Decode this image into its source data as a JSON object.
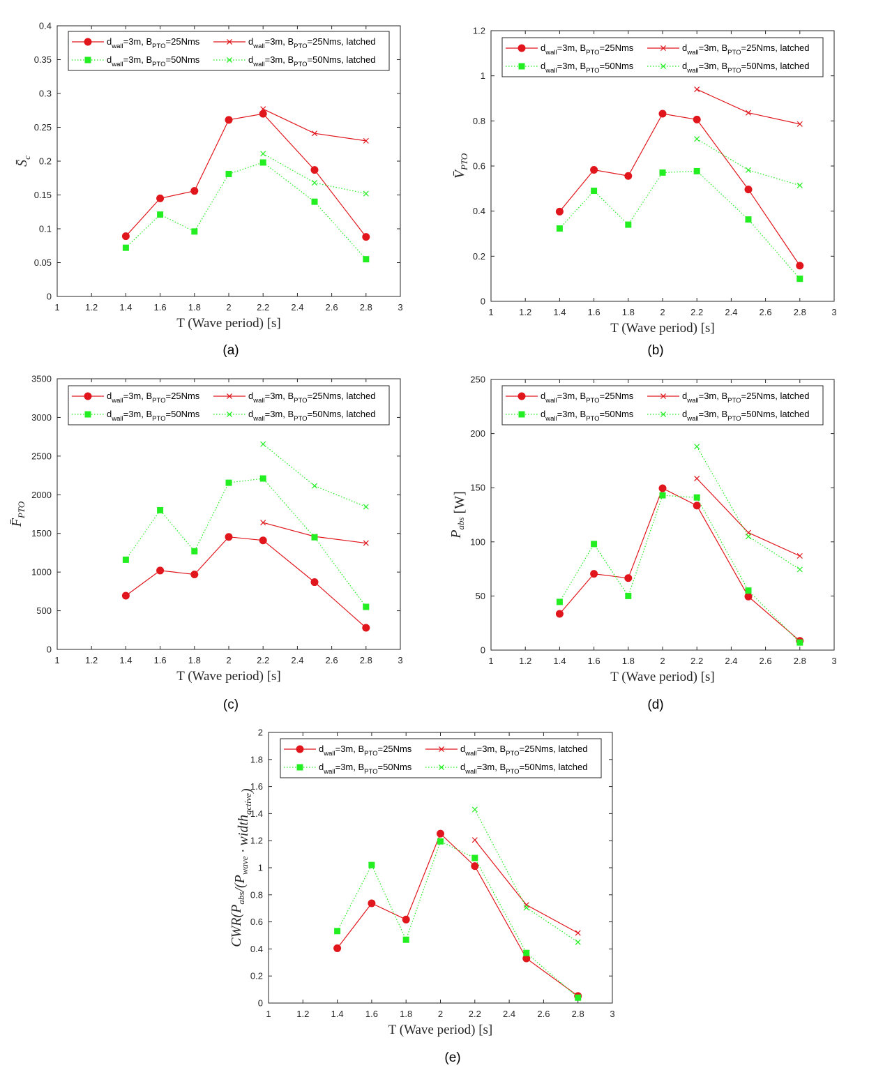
{
  "legend": [
    {
      "label": "d",
      "sub1": "wall",
      "mid": "=3m, B",
      "sub2": "PTO",
      "tail": "=25Nms",
      "color": "#e0161c",
      "marker": "circle",
      "dash": false
    },
    {
      "label": "d",
      "sub1": "wall",
      "mid": "=3m, B",
      "sub2": "PTO",
      "tail": "=25Nms, latched",
      "color": "#e0161c",
      "marker": "x",
      "dash": false
    },
    {
      "label": "d",
      "sub1": "wall",
      "mid": "=3m, B",
      "sub2": "PTO",
      "tail": "=50Nms",
      "color": "#22ee22",
      "marker": "square",
      "dash": true
    },
    {
      "label": "d",
      "sub1": "wall",
      "mid": "=3m, B",
      "sub2": "PTO",
      "tail": "=50Nms, latched",
      "color": "#22ee22",
      "marker": "x",
      "dash": true
    }
  ],
  "chart_data": [
    {
      "type": "line",
      "caption": "(a)",
      "xlabel": "T (Wave period) [s]",
      "ylabel": "S̄c",
      "xlim": [
        1,
        3
      ],
      "ylim": [
        0,
        0.4
      ],
      "xticks": [
        "1",
        "1.2",
        "1.4",
        "1.6",
        "1.8",
        "2",
        "2.2",
        "2.4",
        "2.6",
        "2.8",
        "3"
      ],
      "yticks": [
        "0",
        "0.05",
        "0.1",
        "0.15",
        "0.2",
        "0.25",
        "0.3",
        "0.35",
        "0.4"
      ],
      "legend_position": "top-left",
      "series": [
        {
          "x": [
            1.4,
            1.6,
            1.8,
            2.0,
            2.2,
            2.5,
            2.8
          ],
          "y": [
            0.089,
            0.145,
            0.156,
            0.261,
            0.27,
            0.187,
            0.088
          ]
        },
        {
          "x": [
            2.2,
            2.5,
            2.8
          ],
          "y": [
            0.277,
            0.241,
            0.23
          ]
        },
        {
          "x": [
            1.4,
            1.6,
            1.8,
            2.0,
            2.2,
            2.5,
            2.8
          ],
          "y": [
            0.072,
            0.121,
            0.096,
            0.181,
            0.198,
            0.14,
            0.055
          ]
        },
        {
          "x": [
            2.2,
            2.5,
            2.8
          ],
          "y": [
            0.211,
            0.168,
            0.152
          ]
        }
      ]
    },
    {
      "type": "line",
      "caption": "(b)",
      "xlabel": "T (Wave period) [s]",
      "ylabel": "V̄PTO",
      "xlim": [
        1,
        3
      ],
      "ylim": [
        0,
        1.2
      ],
      "xticks": [
        "1",
        "1.2",
        "1.4",
        "1.6",
        "1.8",
        "2",
        "2.2",
        "2.4",
        "2.6",
        "2.8",
        "3"
      ],
      "yticks": [
        "0",
        "0.2",
        "0.4",
        "0.6",
        "0.8",
        "1",
        "1.2"
      ],
      "legend_position": "top",
      "series": [
        {
          "x": [
            1.4,
            1.6,
            1.8,
            2.0,
            2.2,
            2.5,
            2.8
          ],
          "y": [
            0.398,
            0.583,
            0.556,
            0.832,
            0.806,
            0.496,
            0.158
          ]
        },
        {
          "x": [
            2.2,
            2.5,
            2.8
          ],
          "y": [
            0.94,
            0.836,
            0.786
          ]
        },
        {
          "x": [
            1.4,
            1.6,
            1.8,
            2.0,
            2.2,
            2.5,
            2.8
          ],
          "y": [
            0.323,
            0.49,
            0.34,
            0.571,
            0.577,
            0.363,
            0.1
          ]
        },
        {
          "x": [
            2.2,
            2.5,
            2.8
          ],
          "y": [
            0.72,
            0.582,
            0.514
          ]
        }
      ]
    },
    {
      "type": "line",
      "caption": "(c)",
      "xlabel": "T (Wave period) [s]",
      "ylabel": "F̄PTO",
      "xlim": [
        1,
        3
      ],
      "ylim": [
        0,
        3500
      ],
      "xticks": [
        "1",
        "1.2",
        "1.4",
        "1.6",
        "1.8",
        "2",
        "2.2",
        "2.4",
        "2.6",
        "2.8",
        "3"
      ],
      "yticks": [
        "0",
        "500",
        "1000",
        "1500",
        "2000",
        "2500",
        "3000",
        "3500"
      ],
      "legend_position": "top-left",
      "series": [
        {
          "x": [
            1.4,
            1.6,
            1.8,
            2.0,
            2.2,
            2.5,
            2.8
          ],
          "y": [
            695,
            1020,
            970,
            1455,
            1410,
            870,
            280
          ]
        },
        {
          "x": [
            2.2,
            2.5,
            2.8
          ],
          "y": [
            1640,
            1460,
            1375
          ]
        },
        {
          "x": [
            1.4,
            1.6,
            1.8,
            2.0,
            2.2,
            2.5,
            2.8
          ],
          "y": [
            1160,
            1800,
            1270,
            2155,
            2210,
            1450,
            550
          ]
        },
        {
          "x": [
            2.2,
            2.5,
            2.8
          ],
          "y": [
            2655,
            2115,
            1845
          ]
        }
      ]
    },
    {
      "type": "line",
      "caption": "(d)",
      "xlabel": "T (Wave period) [s]",
      "ylabel": "Pabs [W]",
      "xlim": [
        1,
        3
      ],
      "ylim": [
        0,
        250
      ],
      "xticks": [
        "1",
        "1.2",
        "1.4",
        "1.6",
        "1.8",
        "2",
        "2.2",
        "2.4",
        "2.6",
        "2.8",
        "3"
      ],
      "yticks": [
        "0",
        "50",
        "100",
        "150",
        "200",
        "250"
      ],
      "legend_position": "top",
      "series": [
        {
          "x": [
            1.4,
            1.6,
            1.8,
            2.0,
            2.2,
            2.5,
            2.8
          ],
          "y": [
            33.5,
            70.5,
            66.5,
            149.5,
            133.5,
            49.5,
            8.5
          ]
        },
        {
          "x": [
            2.2,
            2.5,
            2.8
          ],
          "y": [
            158.5,
            108.5,
            87
          ]
        },
        {
          "x": [
            1.4,
            1.6,
            1.8,
            2.0,
            2.2,
            2.5,
            2.8
          ],
          "y": [
            44.5,
            98,
            50,
            143,
            141,
            55,
            7
          ]
        },
        {
          "x": [
            2.2,
            2.5,
            2.8
          ],
          "y": [
            188,
            105,
            74.5
          ]
        }
      ]
    },
    {
      "type": "line",
      "caption": "(e)",
      "xlabel": "T (Wave period) [s]",
      "ylabel": "CWR(Pabs/(Pwave · widthactive))",
      "xlim": [
        1,
        3
      ],
      "ylim": [
        0,
        2
      ],
      "xticks": [
        "1",
        "1.2",
        "1.4",
        "1.6",
        "1.8",
        "2",
        "2.2",
        "2.4",
        "2.6",
        "2.8",
        "3"
      ],
      "yticks": [
        "0",
        "0.2",
        "0.4",
        "0.6",
        "0.8",
        "1",
        "1.2",
        "1.4",
        "1.6",
        "1.8",
        "2"
      ],
      "legend_position": "top",
      "series": [
        {
          "x": [
            1.4,
            1.6,
            1.8,
            2.0,
            2.2,
            2.5,
            2.8
          ],
          "y": [
            0.405,
            0.737,
            0.617,
            1.252,
            1.012,
            0.33,
            0.052
          ]
        },
        {
          "x": [
            2.2,
            2.5,
            2.8
          ],
          "y": [
            1.205,
            0.725,
            0.518
          ]
        },
        {
          "x": [
            1.4,
            1.6,
            1.8,
            2.0,
            2.2,
            2.5,
            2.8
          ],
          "y": [
            0.532,
            1.02,
            0.468,
            1.195,
            1.072,
            0.37,
            0.04
          ]
        },
        {
          "x": [
            2.2,
            2.5,
            2.8
          ],
          "y": [
            1.43,
            0.705,
            0.45
          ]
        }
      ]
    }
  ]
}
